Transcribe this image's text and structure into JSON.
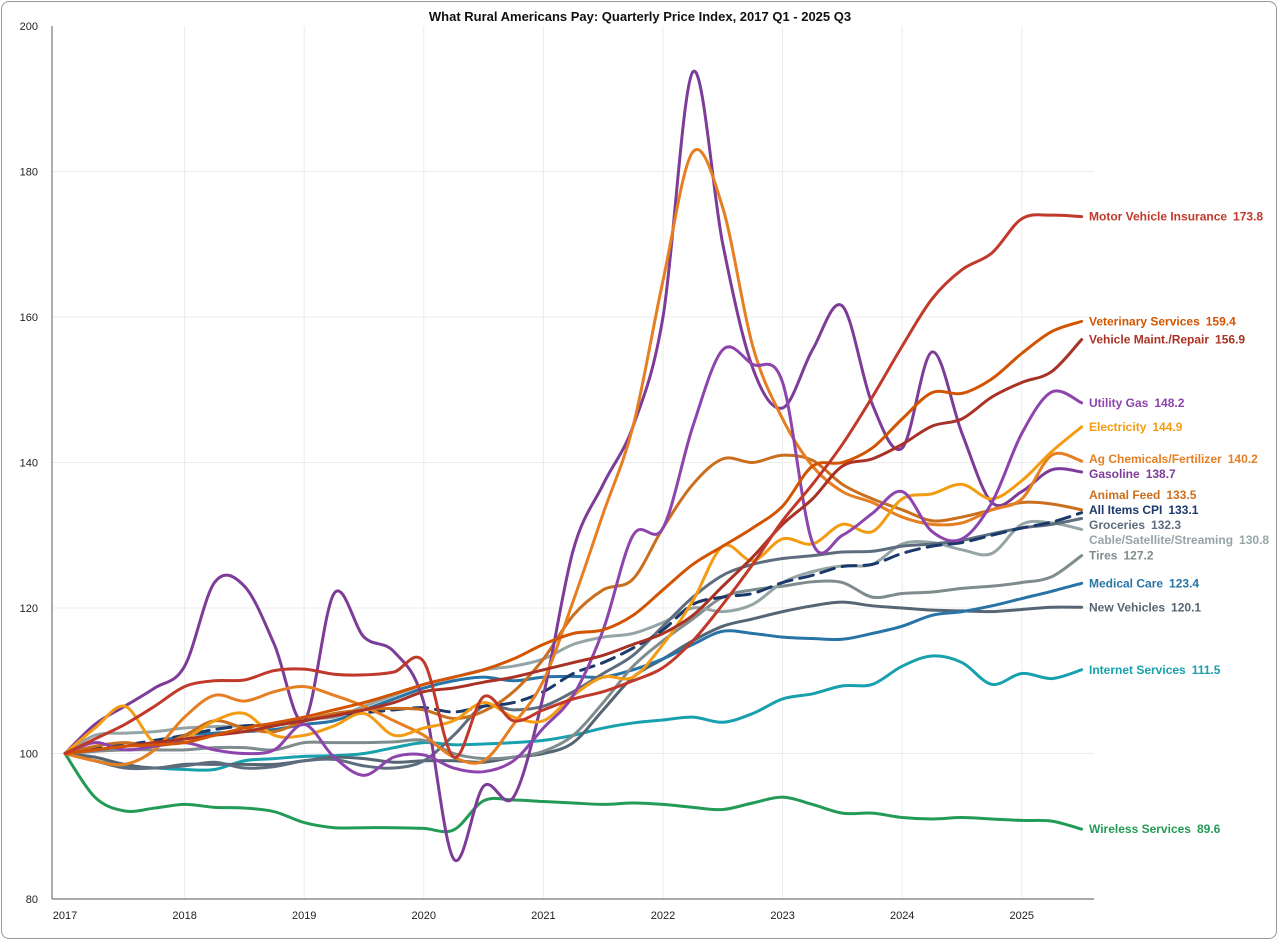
{
  "chart_data": {
    "type": "line",
    "title": "What Rural Americans Pay: Quarterly Price Index, 2017 Q1 - 2025 Q3",
    "xlabel": "",
    "ylabel": "",
    "x_start": "2017 Q1",
    "x_end": "2025 Q3",
    "x_ticks": [
      "2017",
      "2018",
      "2019",
      "2020",
      "2021",
      "2022",
      "2023",
      "2024",
      "2025"
    ],
    "y_ticks": [
      "80",
      "100",
      "120",
      "140",
      "160",
      "180",
      "200"
    ],
    "ylim": [
      80,
      200
    ],
    "grid": true,
    "legend": "end-of-line labels on the right",
    "series": [
      {
        "name": "Motor Vehicle Insurance",
        "end": "173.8",
        "color": "#c0392b",
        "dashed": false,
        "values": [
          100,
          102,
          104,
          106.5,
          109.2,
          110,
          110.1,
          111.4,
          111.6,
          110.9,
          110.8,
          111.2,
          112.6,
          99.5,
          107.8,
          104.5,
          106,
          107.5,
          108.5,
          110,
          111.8,
          115.5,
          120.5,
          126,
          132,
          137,
          142.5,
          149,
          156,
          162.5,
          166.5,
          168.8,
          173.5,
          174,
          173.8
        ]
      },
      {
        "name": "Veterinary Services",
        "end": "159.4",
        "color": "#d35400",
        "dashed": false,
        "values": [
          100,
          100.5,
          101,
          101.2,
          101.5,
          102.5,
          103.5,
          104.2,
          105,
          106,
          107,
          108.2,
          109.5,
          110.5,
          111.5,
          113,
          115,
          116.5,
          117,
          119,
          122.5,
          126,
          128.5,
          131,
          134,
          139.5,
          140,
          142,
          146,
          149.6,
          149.5,
          151.5,
          155,
          158,
          159.4
        ]
      },
      {
        "name": "Vehicle Maint./Repair",
        "end": "156.9",
        "color": "#a93226",
        "dashed": false,
        "values": [
          100,
          100.5,
          101,
          101.5,
          102,
          102.5,
          103,
          103.8,
          104.5,
          105.2,
          106,
          107,
          108.5,
          109,
          109.8,
          110.5,
          111.5,
          112.5,
          113.5,
          115,
          116.5,
          119,
          123,
          127,
          131.5,
          135,
          139.5,
          140.5,
          142.5,
          145,
          146,
          149,
          151,
          152.5,
          156.9
        ]
      },
      {
        "name": "Utility Gas",
        "end": "148.2",
        "color": "#8e44ad",
        "dashed": false,
        "values": [
          100,
          101.5,
          100.5,
          101,
          101.5,
          100.5,
          100,
          100.5,
          104,
          99.5,
          97,
          99.5,
          99.8,
          98,
          97.5,
          99,
          103.5,
          108,
          117,
          130,
          131,
          145,
          155.5,
          153.5,
          151,
          129,
          130,
          133,
          136,
          130.5,
          129.5,
          134.5,
          144,
          149.7,
          148.2
        ]
      },
      {
        "name": "Electricity",
        "end": "144.9",
        "color": "#f39c12",
        "dashed": false,
        "values": [
          100,
          103.5,
          106.5,
          101.5,
          102,
          104.5,
          105.5,
          102.5,
          102.5,
          103.8,
          105.5,
          102.5,
          103.5,
          104.5,
          107,
          105,
          104.5,
          108,
          110.5,
          110.5,
          115,
          121,
          128.5,
          126.5,
          129.5,
          128.8,
          131.5,
          130.5,
          135,
          135.7,
          137,
          135,
          137.5,
          141.5,
          144.9
        ]
      },
      {
        "name": "Ag Chemicals/Fertilizer",
        "end": "140.2",
        "color": "#e67e22",
        "dashed": false,
        "values": [
          100,
          99,
          98.5,
          100.5,
          105,
          108,
          107.2,
          108.5,
          109.2,
          108,
          106.5,
          104.5,
          102.5,
          99.5,
          99,
          104,
          110,
          121,
          133,
          145,
          165,
          182.7,
          175,
          156,
          146,
          139.5,
          136,
          134.5,
          132.5,
          131.5,
          131.7,
          133.5,
          135,
          141,
          140.2
        ]
      },
      {
        "name": "Gasoline",
        "end": "138.7",
        "color": "#7d3c98",
        "dashed": false,
        "values": [
          100,
          104,
          106.5,
          109,
          112,
          123.5,
          123,
          115,
          104.5,
          122,
          116,
          114,
          107,
          85.5,
          95.5,
          94,
          108,
          128,
          137,
          145,
          160,
          193.7,
          170,
          153,
          147.5,
          155.5,
          161.5,
          148,
          142,
          155.2,
          144,
          134.5,
          136,
          139,
          138.7
        ]
      },
      {
        "name": "Animal Feed",
        "end": "133.5",
        "color": "#ca6f1e",
        "dashed": false,
        "values": [
          100,
          101,
          101.5,
          101,
          102.5,
          104.5,
          103.5,
          103,
          104.5,
          105.5,
          106,
          106.2,
          106,
          104.8,
          105.8,
          108.5,
          113,
          119,
          122.5,
          124,
          131,
          137,
          140.5,
          140,
          141,
          140.3,
          137,
          135,
          133.5,
          132,
          132.5,
          133.5,
          134.5,
          134.3,
          133.5
        ]
      },
      {
        "name": "All Items CPI",
        "end": "133.1",
        "color": "#1b3a6b",
        "dashed": true,
        "values": [
          100,
          100.8,
          101.2,
          101.8,
          102.5,
          103.3,
          103.8,
          104,
          104.5,
          105.3,
          105.6,
          106,
          106.3,
          105.7,
          106.5,
          107,
          108.5,
          111,
          112.5,
          114.5,
          117,
          120.5,
          121.5,
          122,
          123.5,
          124.5,
          125.7,
          126,
          127.5,
          128.5,
          129,
          130,
          131,
          131.8,
          133.1
        ]
      },
      {
        "name": "Groceries",
        "end": "132.3",
        "color": "#5d6d7e",
        "dashed": false,
        "values": [
          100,
          99,
          98,
          98,
          98.3,
          98.8,
          98,
          98.2,
          99,
          99.2,
          98.3,
          98,
          99,
          102.5,
          106.5,
          106,
          106.5,
          108.5,
          111,
          113.5,
          117.5,
          121.5,
          124.5,
          126,
          126.8,
          127.2,
          127.7,
          127.8,
          128.5,
          128.8,
          129.3,
          130.2,
          131,
          131.5,
          132.3
        ]
      },
      {
        "name": "Cable/Satellite/Streaming",
        "end": "130.8",
        "color": "#95a5a6",
        "dashed": false,
        "values": [
          100,
          102.5,
          102.8,
          103,
          103.5,
          103.7,
          103.8,
          104,
          104.8,
          105,
          106.5,
          108,
          109.5,
          110.5,
          111.5,
          112,
          113,
          115,
          116,
          116.5,
          118,
          120,
          119.5,
          120.5,
          123.5,
          125,
          125.8,
          126,
          128.8,
          129,
          128,
          127.5,
          131.5,
          131.7,
          130.8
        ]
      },
      {
        "name": "Tires",
        "end": "127.2",
        "color": "#7f8c8d",
        "dashed": false,
        "values": [
          100,
          100.3,
          100.5,
          100.5,
          100.5,
          100.8,
          100.8,
          100.5,
          101.5,
          101.5,
          101.5,
          101.6,
          101.8,
          100,
          99.3,
          99.5,
          100.3,
          102.5,
          107,
          112,
          115.5,
          118.5,
          121.5,
          122.5,
          123,
          123.6,
          123.5,
          121.5,
          122,
          122.2,
          122.7,
          123,
          123.5,
          124.3,
          127.2
        ]
      },
      {
        "name": "Medical Care",
        "end": "123.4",
        "color": "#2874a6",
        "dashed": false,
        "values": [
          100,
          100.5,
          101,
          101.5,
          102.5,
          102.8,
          103,
          103.3,
          104,
          104.5,
          106,
          107.5,
          109,
          110,
          110.5,
          110,
          110.5,
          110.6,
          110.5,
          111.5,
          113,
          115,
          116.8,
          116.5,
          116,
          115.8,
          115.7,
          116.5,
          117.5,
          119,
          119.5,
          120.3,
          121.3,
          122.3,
          123.4
        ]
      },
      {
        "name": "New Vehicles",
        "end": "120.1",
        "color": "#566573",
        "dashed": false,
        "values": [
          100,
          99.5,
          98.5,
          98,
          98.5,
          98.5,
          98.5,
          98.5,
          99,
          99.5,
          99.3,
          98.8,
          99,
          99,
          98.8,
          99.5,
          100,
          101.5,
          106,
          110.5,
          113,
          115.5,
          117.5,
          118.5,
          119.5,
          120.3,
          120.8,
          120.3,
          120,
          119.7,
          119.6,
          119.5,
          119.8,
          120.1,
          120.1
        ]
      },
      {
        "name": "Internet Services",
        "end": "111.5",
        "color": "#17a0ad",
        "dashed": false,
        "values": [
          100,
          99,
          98.3,
          98,
          97.8,
          97.8,
          99,
          99.3,
          99.6,
          99.7,
          100,
          100.8,
          101.5,
          101.2,
          101.3,
          101.5,
          101.8,
          102.5,
          103.5,
          104.2,
          104.6,
          105,
          104.3,
          105.5,
          107.5,
          108.2,
          109.3,
          109.5,
          112,
          113.4,
          112.5,
          109.5,
          111,
          110.3,
          111.5
        ]
      },
      {
        "name": "Wireless Services",
        "end": "89.6",
        "color": "#239b56",
        "dashed": false,
        "values": [
          100,
          94,
          92.1,
          92.5,
          93,
          92.6,
          92.5,
          92,
          90.5,
          89.8,
          89.8,
          89.8,
          89.7,
          89.5,
          93.5,
          93.6,
          93.4,
          93.2,
          93,
          93.2,
          93,
          92.6,
          92.3,
          93.2,
          94,
          93,
          91.8,
          91.8,
          91.2,
          91,
          91.2,
          91,
          90.8,
          90.7,
          89.6
        ]
      }
    ]
  }
}
